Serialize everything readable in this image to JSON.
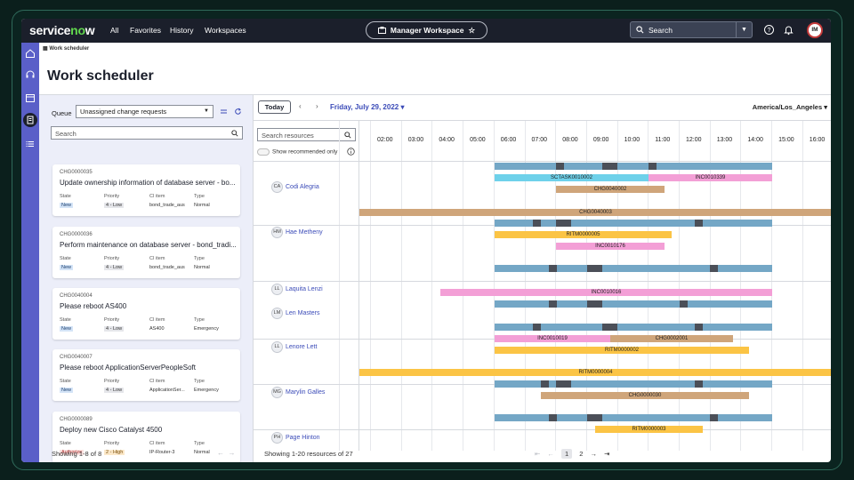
{
  "app": {
    "logo": "servicenow",
    "nav": [
      "All",
      "Favorites",
      "History",
      "Workspaces"
    ],
    "workspace": "Manager Workspace",
    "search_label": "Search",
    "user_initials": "IM"
  },
  "breadcrumb": "Work scheduler",
  "page_title": "Work scheduler",
  "queue": {
    "label": "Queue",
    "selected": "Unassigned change requests",
    "search_placeholder": "Search",
    "footer": "Showing 1-8 of 8"
  },
  "field_labels": {
    "state": "State",
    "priority": "Priority",
    "ci": "CI item",
    "type": "Type"
  },
  "cards": [
    {
      "number": "CHG0000035",
      "title": "Update ownership information of database server - bo...",
      "state": "New",
      "priority": "4 - Low",
      "ci": "bond_trade_aus",
      "type": "Normal"
    },
    {
      "number": "CHG0000036",
      "title": "Perform maintenance on database server - bond_tradi...",
      "state": "New",
      "priority": "4 - Low",
      "ci": "bond_trade_aus",
      "type": "Normal"
    },
    {
      "number": "CHG0040004",
      "title": "Please reboot AS400",
      "state": "New",
      "priority": "4 - Low",
      "ci": "AS400",
      "type": "Emergency"
    },
    {
      "number": "CHG0040007",
      "title": "Please reboot ApplicationServerPeopleSoft",
      "state": "New",
      "priority": "4 - Low",
      "ci": "ApplicationSer...",
      "type": "Emergency"
    },
    {
      "number": "CHG0000089",
      "title": "Deploy new Cisco Catalyst 4500",
      "state": "Authorize",
      "priority": "2 - High",
      "ci": "IP-Router-3",
      "type": "Normal"
    }
  ],
  "scheduler": {
    "today": "Today",
    "date": "Friday, July 29, 2022",
    "timezone": "America/Los_Angeles",
    "resource_search_placeholder": "Search resources",
    "show_recommended": "Show recommended only",
    "hours": [
      "02:00",
      "03:00",
      "04:00",
      "05:00",
      "06:00",
      "07:00",
      "08:00",
      "09:00",
      "10:00",
      "11:00",
      "12:00",
      "13:00",
      "14:00",
      "15:00",
      "16:00"
    ],
    "footer": "Showing 1-20 resources of 27",
    "pages": [
      "1",
      "2"
    ]
  },
  "resources": [
    {
      "initials": "CA",
      "name": "Codi Alegria"
    },
    {
      "initials": "HM",
      "name": "Hae Metheny"
    },
    {
      "initials": "LL",
      "name": "Laquita Lenzi"
    },
    {
      "initials": "LM",
      "name": "Len Masters"
    },
    {
      "initials": "LL",
      "name": "Lenore Lett"
    },
    {
      "initials": "MG",
      "name": "Marylin Galles"
    },
    {
      "initials": "PH",
      "name": "Page Hinton"
    }
  ],
  "tasks": [
    "SCTASK0010002",
    "INC0010339",
    "CHG0040002",
    "CHG0040003",
    "RITM0000005",
    "INC0010176",
    "INC0010016",
    "INC0010019",
    "CHG0002001",
    "RITM0000002",
    "RITM0000004",
    "CHG0000030",
    "RITM0000003"
  ],
  "colors": {
    "shift": "#74a7c6",
    "break": "#4b4f58",
    "task_cyan": "#6ed1ea",
    "task_pink": "#f39fd6",
    "task_tan": "#cfa57a",
    "task_yellow": "#fbc445",
    "accent": "#3b4bb8",
    "rail": "#5a5fc8"
  }
}
